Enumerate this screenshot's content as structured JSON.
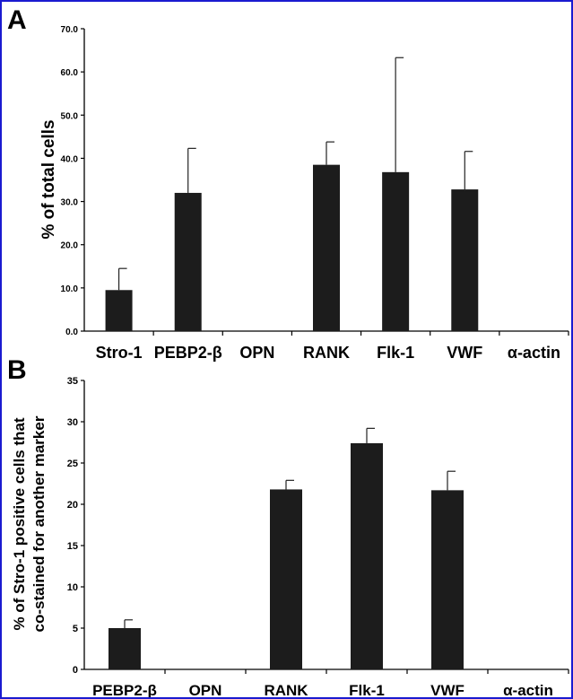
{
  "chart_data": [
    {
      "panel": "A",
      "type": "bar",
      "categories": [
        "Stro-1",
        "PEBP2-β",
        "OPN",
        "RANK",
        "Flk-1",
        "VWF",
        "α-actin"
      ],
      "values": [
        9.5,
        32.0,
        0,
        38.5,
        36.8,
        32.8,
        0
      ],
      "errors": [
        5.0,
        10.3,
        0,
        5.3,
        26.5,
        8.8,
        0
      ],
      "ylabel": "% of total cells",
      "ylabel_lines": [
        "% of total cells"
      ],
      "ylim": [
        0,
        70
      ],
      "yticks": [
        0,
        10,
        20,
        30,
        40,
        50,
        60,
        70
      ],
      "ytick_labels": [
        "0.0",
        "10.0",
        "20.0",
        "30.0",
        "40.0",
        "50.0",
        "60.0",
        "70.0"
      ],
      "bar_color": "#1c1c1c",
      "grid": false
    },
    {
      "panel": "B",
      "type": "bar",
      "categories": [
        "PEBP2-β",
        "OPN",
        "RANK",
        "Flk-1",
        "VWF",
        "α-actin"
      ],
      "values": [
        5.0,
        0,
        21.8,
        27.4,
        21.7,
        0
      ],
      "errors": [
        1.0,
        0,
        1.1,
        1.8,
        2.3,
        0
      ],
      "ylabel": "% of Stro-1 positive cells that co-stained for another marker",
      "ylabel_lines": [
        "% of Stro-1 positive cells that",
        "co-stained for another marker"
      ],
      "ylim": [
        0,
        35
      ],
      "yticks": [
        0,
        5,
        10,
        15,
        20,
        25,
        30,
        35
      ],
      "ytick_labels": [
        "0",
        "5",
        "10",
        "15",
        "20",
        "25",
        "30",
        "35"
      ],
      "bar_color": "#1c1c1c",
      "grid": false
    }
  ]
}
